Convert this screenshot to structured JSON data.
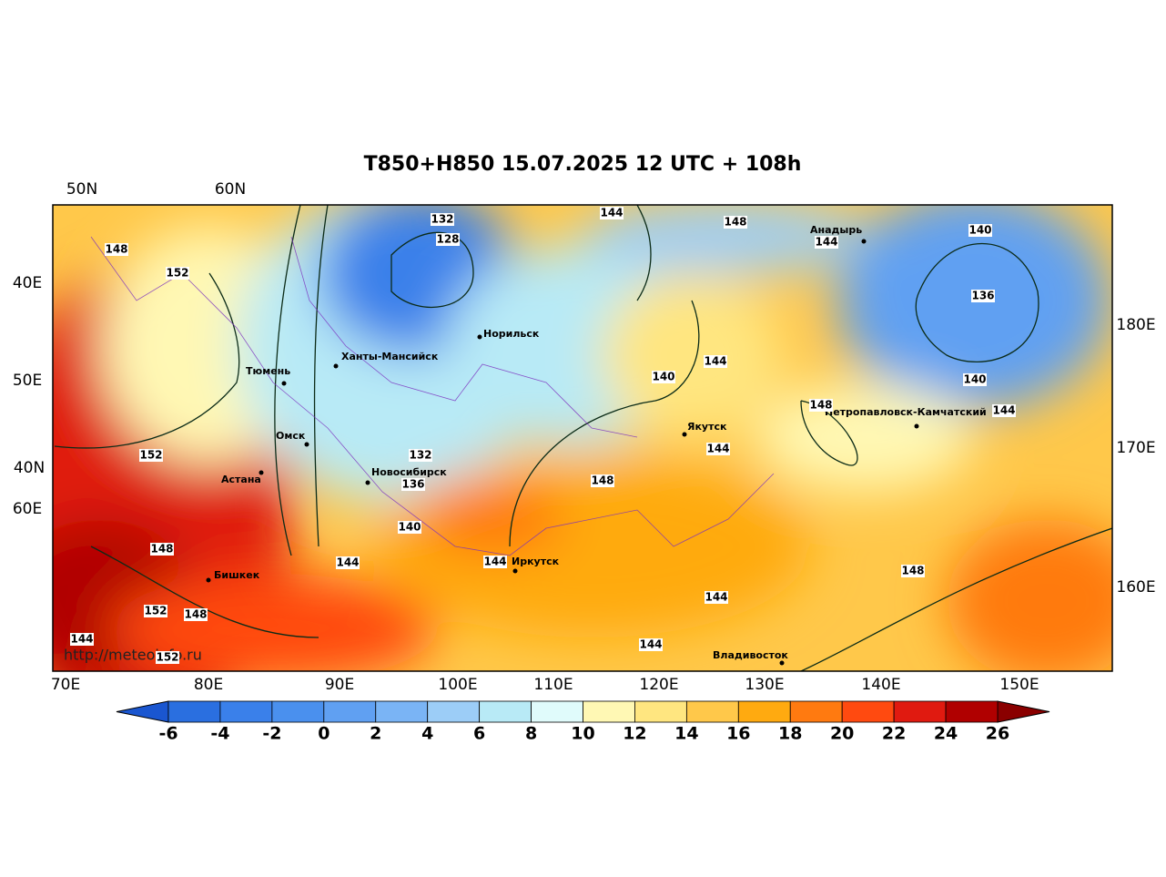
{
  "title": "T850+H850 15.07.2025 12 UTC + 108h",
  "axis_labels": {
    "top": [
      "50N",
      "60N"
    ],
    "left": [
      "40E",
      "50E",
      "40N",
      "60E"
    ],
    "right": [
      "180E",
      "170E",
      "160E"
    ],
    "bottom": [
      "70E",
      "80E",
      "90E",
      "100E",
      "110E",
      "120E",
      "130E",
      "140E",
      "150E"
    ]
  },
  "cities": [
    "Норильск",
    "Ханты-Мансийск",
    "Тюмень",
    "Омск",
    "Астана",
    "Новосибирск",
    "Иркутск",
    "Бишкек",
    "Якутск",
    "Анадырь",
    "Петропавловск-Камчатский",
    "Владивосток"
  ],
  "contour_labels": [
    132,
    128,
    144,
    148,
    144,
    140,
    148,
    152,
    136,
    140,
    144,
    140,
    148,
    144,
    144,
    152,
    132,
    136,
    148,
    140,
    148,
    144,
    144,
    148,
    144,
    152,
    148,
    144,
    144,
    152
  ],
  "watermark": "http://meteoinfo.ru",
  "colorbar": {
    "ticks": [
      -6,
      -4,
      -2,
      0,
      2,
      4,
      6,
      8,
      10,
      12,
      14,
      16,
      18,
      20,
      22,
      24,
      26
    ],
    "colors": [
      "#2a6fe0",
      "#3a80ea",
      "#4a90ee",
      "#60a0f2",
      "#7ab4f5",
      "#9ccdf7",
      "#b8eaf6",
      "#e0fbfb",
      "#fff8b4",
      "#ffe680",
      "#ffc84a",
      "#ffaa10",
      "#ff7a10",
      "#ff4a10",
      "#e01a10",
      "#b00000"
    ],
    "under_color": "#1a56d0",
    "over_color": "#8a0000"
  }
}
